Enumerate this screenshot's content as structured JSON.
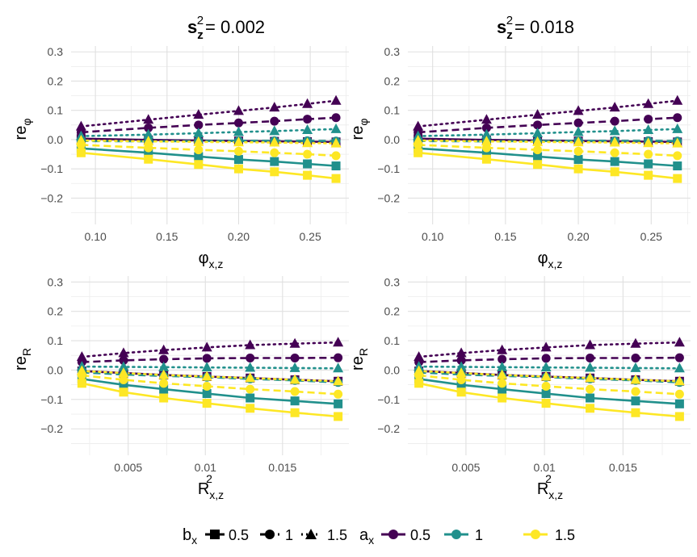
{
  "titles": {
    "col1": "= 0.002",
    "col2": "= 0.018",
    "s_sym": "s",
    "s_sub": "z",
    "s_sup": "2"
  },
  "axis_labels": {
    "top_y_main": "re",
    "top_y_sub": "φ",
    "bot_y_main": "re",
    "bot_y_sub": "R",
    "top_x_main": "φ",
    "top_x_sub": "x,z",
    "bot_x_main": "R",
    "bot_x_sub": "x,z",
    "bot_x_sup": "2"
  },
  "legend": {
    "b_title": "b",
    "b_sub": "x",
    "b_items": [
      "0.5",
      "1",
      "1.5"
    ],
    "a_title": "a",
    "a_sub": "x",
    "a_items": [
      "0.5",
      "1",
      "1.5"
    ]
  },
  "colors": {
    "a_0_5": "#440154",
    "a_1": "#21908C",
    "a_1_5": "#FDE725",
    "grid": "#e0e0e0",
    "tick_text": "#4d4d4d"
  },
  "chart_data": [
    {
      "type": "line",
      "panel": "top-left",
      "x_ticks": [
        0.1,
        0.15,
        0.2,
        0.25
      ],
      "xlim": [
        0.083,
        0.277
      ],
      "y_ticks": [
        -0.2,
        -0.1,
        0.0,
        0.1,
        0.2,
        0.3
      ],
      "ylim": [
        -0.29,
        0.32
      ],
      "x": [
        0.09,
        0.137,
        0.172,
        0.2,
        0.225,
        0.248,
        0.268
      ],
      "series": [
        {
          "a": "0.5",
          "b": "0.5",
          "values": [
            0.003,
            -0.001,
            -0.003,
            -0.005,
            -0.006,
            -0.007,
            -0.008
          ]
        },
        {
          "a": "0.5",
          "b": "1",
          "values": [
            0.025,
            0.04,
            0.05,
            0.057,
            0.063,
            0.07,
            0.075
          ]
        },
        {
          "a": "0.5",
          "b": "1.5",
          "values": [
            0.045,
            0.068,
            0.085,
            0.098,
            0.11,
            0.122,
            0.133
          ]
        },
        {
          "a": "1",
          "b": "0.5",
          "values": [
            -0.03,
            -0.045,
            -0.058,
            -0.068,
            -0.075,
            -0.083,
            -0.09
          ]
        },
        {
          "a": "1",
          "b": "1",
          "values": [
            -0.005,
            -0.006,
            -0.005,
            -0.004,
            -0.004,
            -0.004,
            -0.005
          ]
        },
        {
          "a": "1",
          "b": "1.5",
          "values": [
            0.012,
            0.017,
            0.022,
            0.026,
            0.029,
            0.033,
            0.036
          ]
        },
        {
          "a": "1.5",
          "b": "0.5",
          "values": [
            -0.045,
            -0.067,
            -0.085,
            -0.1,
            -0.11,
            -0.122,
            -0.133
          ]
        },
        {
          "a": "1.5",
          "b": "1",
          "values": [
            -0.018,
            -0.028,
            -0.035,
            -0.04,
            -0.045,
            -0.05,
            -0.055
          ]
        },
        {
          "a": "1.5",
          "b": "1.5",
          "values": [
            -0.003,
            -0.006,
            -0.008,
            -0.009,
            -0.01,
            -0.012,
            -0.013
          ]
        }
      ]
    },
    {
      "type": "line",
      "panel": "top-right",
      "x_ticks": [
        0.1,
        0.15,
        0.2,
        0.25
      ],
      "xlim": [
        0.083,
        0.277
      ],
      "y_ticks": [
        -0.2,
        -0.1,
        0.0,
        0.1,
        0.2,
        0.3
      ],
      "ylim": [
        -0.29,
        0.32
      ],
      "x": [
        0.09,
        0.137,
        0.172,
        0.2,
        0.225,
        0.248,
        0.268
      ],
      "series": [
        {
          "a": "0.5",
          "b": "0.5",
          "values": [
            0.003,
            -0.001,
            -0.003,
            -0.005,
            -0.006,
            -0.007,
            -0.008
          ]
        },
        {
          "a": "0.5",
          "b": "1",
          "values": [
            0.025,
            0.04,
            0.05,
            0.057,
            0.063,
            0.07,
            0.075
          ]
        },
        {
          "a": "0.5",
          "b": "1.5",
          "values": [
            0.045,
            0.068,
            0.085,
            0.098,
            0.11,
            0.122,
            0.133
          ]
        },
        {
          "a": "1",
          "b": "0.5",
          "values": [
            -0.03,
            -0.045,
            -0.058,
            -0.068,
            -0.075,
            -0.083,
            -0.09
          ]
        },
        {
          "a": "1",
          "b": "1",
          "values": [
            -0.005,
            -0.006,
            -0.005,
            -0.004,
            -0.004,
            -0.004,
            -0.005
          ]
        },
        {
          "a": "1",
          "b": "1.5",
          "values": [
            0.012,
            0.017,
            0.022,
            0.026,
            0.029,
            0.033,
            0.036
          ]
        },
        {
          "a": "1.5",
          "b": "0.5",
          "values": [
            -0.045,
            -0.067,
            -0.085,
            -0.1,
            -0.11,
            -0.122,
            -0.133
          ]
        },
        {
          "a": "1.5",
          "b": "1",
          "values": [
            -0.018,
            -0.028,
            -0.035,
            -0.04,
            -0.045,
            -0.05,
            -0.055
          ]
        },
        {
          "a": "1.5",
          "b": "1.5",
          "values": [
            -0.003,
            -0.006,
            -0.008,
            -0.009,
            -0.01,
            -0.012,
            -0.013
          ]
        }
      ]
    },
    {
      "type": "line",
      "panel": "bottom-left",
      "x_ticks": [
        0.005,
        0.01,
        0.015
      ],
      "xlim": [
        0.0013,
        0.0193
      ],
      "y_ticks": [
        -0.2,
        -0.1,
        0.0,
        0.1,
        0.2,
        0.3
      ],
      "ylim": [
        -0.29,
        0.32
      ],
      "x": [
        0.002,
        0.0047,
        0.0073,
        0.0101,
        0.0129,
        0.0158,
        0.0186
      ],
      "series": [
        {
          "a": "0.5",
          "b": "0.5",
          "values": [
            -0.003,
            -0.01,
            -0.017,
            -0.022,
            -0.027,
            -0.033,
            -0.038
          ]
        },
        {
          "a": "0.5",
          "b": "1",
          "values": [
            0.027,
            0.033,
            0.037,
            0.04,
            0.041,
            0.041,
            0.042
          ]
        },
        {
          "a": "0.5",
          "b": "1.5",
          "values": [
            0.045,
            0.058,
            0.068,
            0.077,
            0.085,
            0.09,
            0.094
          ]
        },
        {
          "a": "1",
          "b": "0.5",
          "values": [
            -0.03,
            -0.05,
            -0.065,
            -0.08,
            -0.095,
            -0.105,
            -0.115
          ]
        },
        {
          "a": "1",
          "b": "1",
          "values": [
            -0.008,
            -0.015,
            -0.02,
            -0.024,
            -0.03,
            -0.035,
            -0.042
          ]
        },
        {
          "a": "1",
          "b": "1.5",
          "values": [
            0.012,
            0.011,
            0.01,
            0.009,
            0.008,
            0.007,
            0.006
          ]
        },
        {
          "a": "1.5",
          "b": "0.5",
          "values": [
            -0.045,
            -0.075,
            -0.095,
            -0.113,
            -0.13,
            -0.145,
            -0.158
          ]
        },
        {
          "a": "1.5",
          "b": "1",
          "values": [
            -0.018,
            -0.033,
            -0.045,
            -0.055,
            -0.065,
            -0.073,
            -0.082
          ]
        },
        {
          "a": "1.5",
          "b": "1.5",
          "values": [
            -0.003,
            -0.01,
            -0.017,
            -0.022,
            -0.027,
            -0.033,
            -0.038
          ]
        }
      ]
    },
    {
      "type": "line",
      "panel": "bottom-right",
      "x_ticks": [
        0.005,
        0.01,
        0.015
      ],
      "xlim": [
        0.0013,
        0.0193
      ],
      "y_ticks": [
        -0.2,
        -0.1,
        0.0,
        0.1,
        0.2,
        0.3
      ],
      "ylim": [
        -0.29,
        0.32
      ],
      "x": [
        0.002,
        0.0047,
        0.0073,
        0.0101,
        0.0129,
        0.0158,
        0.0186
      ],
      "series": [
        {
          "a": "0.5",
          "b": "0.5",
          "values": [
            -0.003,
            -0.01,
            -0.017,
            -0.022,
            -0.027,
            -0.033,
            -0.038
          ]
        },
        {
          "a": "0.5",
          "b": "1",
          "values": [
            0.027,
            0.033,
            0.037,
            0.04,
            0.041,
            0.041,
            0.042
          ]
        },
        {
          "a": "0.5",
          "b": "1.5",
          "values": [
            0.045,
            0.058,
            0.068,
            0.077,
            0.085,
            0.09,
            0.094
          ]
        },
        {
          "a": "1",
          "b": "0.5",
          "values": [
            -0.03,
            -0.05,
            -0.065,
            -0.08,
            -0.095,
            -0.105,
            -0.115
          ]
        },
        {
          "a": "1",
          "b": "1",
          "values": [
            -0.008,
            -0.015,
            -0.02,
            -0.024,
            -0.03,
            -0.035,
            -0.042
          ]
        },
        {
          "a": "1",
          "b": "1.5",
          "values": [
            0.012,
            0.011,
            0.01,
            0.009,
            0.008,
            0.007,
            0.006
          ]
        },
        {
          "a": "1.5",
          "b": "0.5",
          "values": [
            -0.045,
            -0.075,
            -0.095,
            -0.113,
            -0.13,
            -0.145,
            -0.158
          ]
        },
        {
          "a": "1.5",
          "b": "1",
          "values": [
            -0.018,
            -0.033,
            -0.045,
            -0.055,
            -0.065,
            -0.073,
            -0.082
          ]
        },
        {
          "a": "1.5",
          "b": "1.5",
          "values": [
            -0.003,
            -0.01,
            -0.017,
            -0.022,
            -0.027,
            -0.033,
            -0.038
          ]
        }
      ]
    }
  ]
}
